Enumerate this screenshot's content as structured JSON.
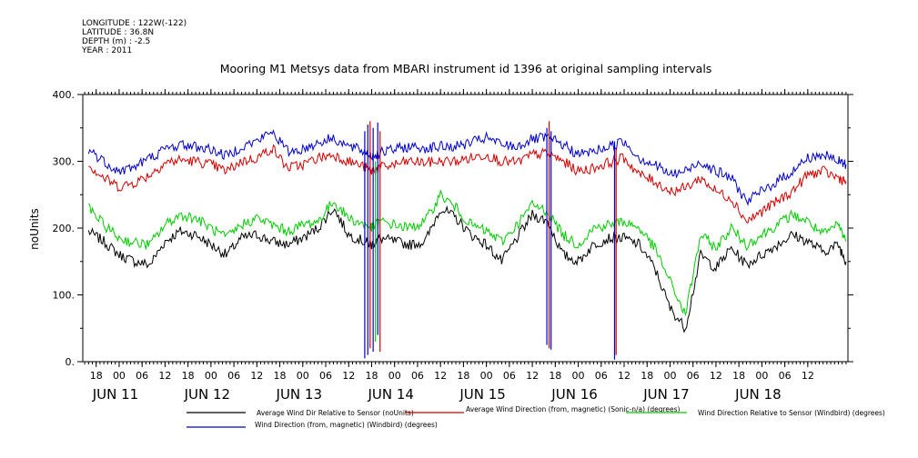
{
  "header": {
    "longitude": "LONGITUDE : 122W(-122)",
    "latitude": "LATITUDE : 36.8N",
    "depth": "DEPTH (m) : -2.5",
    "year": "YEAR : 2011"
  },
  "chart_data": {
    "type": "line",
    "title": "Mooring M1 Metsys data from MBARI instrument id 1396 at original sampling intervals",
    "ylabel": "noUnits",
    "ylim": [
      0,
      400
    ],
    "yticks": [
      {
        "value": 0,
        "label": "0."
      },
      {
        "value": 100,
        "label": "100."
      },
      {
        "value": 200,
        "label": "200."
      },
      {
        "value": 300,
        "label": "300."
      },
      {
        "value": 400,
        "label": "400."
      }
    ],
    "xlim_hours": [
      -9.5,
      190.5
    ],
    "x_hour_labels": [
      "18",
      "00",
      "06",
      "12",
      "18",
      "00",
      "06",
      "12",
      "18",
      "00",
      "06",
      "12",
      "18",
      "00",
      "06",
      "12",
      "18",
      "00",
      "06",
      "12",
      "18",
      "00",
      "06",
      "12",
      "18",
      "00",
      "06",
      "12",
      "18",
      "00",
      "06",
      "12"
    ],
    "x_day_labels": [
      "JUN 11",
      "JUN 12",
      "JUN 13",
      "JUN 14",
      "JUN 15",
      "JUN 16",
      "JUN 17",
      "JUN 18"
    ],
    "grid": false,
    "legend": "bottom",
    "series": [
      {
        "name": "Average Wind Dir Relative to Sensor (noUnits)",
        "color": "#000000",
        "x": [
          -8,
          -4,
          0,
          4,
          8,
          12,
          16,
          20,
          24,
          28,
          32,
          36,
          40,
          44,
          48,
          52,
          56,
          60,
          64,
          66,
          68,
          72,
          76,
          80,
          84,
          88,
          92,
          96,
          100,
          104,
          108,
          112,
          116,
          120,
          124,
          128,
          132,
          136,
          140,
          144,
          148,
          152,
          156,
          160,
          164,
          168,
          172,
          176,
          180,
          184,
          188,
          190
        ],
        "values": [
          195,
          180,
          160,
          150,
          145,
          180,
          195,
          190,
          175,
          160,
          185,
          190,
          180,
          175,
          185,
          200,
          230,
          190,
          180,
          175,
          185,
          180,
          175,
          180,
          230,
          215,
          190,
          175,
          150,
          185,
          220,
          210,
          160,
          150,
          175,
          185,
          185,
          175,
          140,
          80,
          50,
          160,
          140,
          170,
          145,
          160,
          175,
          190,
          180,
          165,
          175,
          150
        ]
      },
      {
        "name": "Average Wind Direction (from, magnetic) (Sonic-n/a) (degrees)",
        "color": "#d40000",
        "x": [
          -8,
          -4,
          0,
          4,
          8,
          12,
          16,
          20,
          24,
          28,
          32,
          36,
          40,
          44,
          48,
          52,
          56,
          60,
          64,
          66,
          68,
          72,
          76,
          80,
          84,
          88,
          92,
          96,
          100,
          104,
          108,
          112,
          116,
          120,
          124,
          128,
          132,
          136,
          140,
          144,
          148,
          152,
          156,
          160,
          164,
          168,
          172,
          176,
          180,
          184,
          188,
          190
        ],
        "values": [
          295,
          275,
          262,
          268,
          280,
          298,
          302,
          300,
          295,
          285,
          300,
          305,
          320,
          290,
          295,
          305,
          310,
          300,
          292,
          285,
          290,
          295,
          300,
          298,
          300,
          300,
          305,
          310,
          300,
          298,
          310,
          312,
          300,
          285,
          290,
          298,
          305,
          280,
          270,
          255,
          260,
          275,
          255,
          245,
          210,
          225,
          240,
          255,
          280,
          285,
          275,
          270
        ]
      },
      {
        "name": "Wind Direction Relative to Sensor (Windbird) (degrees)",
        "color": "#00cc00",
        "x": [
          -8,
          -4,
          0,
          4,
          8,
          12,
          16,
          20,
          24,
          28,
          32,
          36,
          40,
          44,
          48,
          52,
          56,
          60,
          64,
          66,
          68,
          72,
          76,
          80,
          84,
          88,
          92,
          96,
          100,
          104,
          108,
          112,
          116,
          120,
          124,
          128,
          132,
          136,
          140,
          144,
          148,
          152,
          156,
          160,
          164,
          168,
          172,
          176,
          180,
          184,
          188,
          190
        ],
        "values": [
          230,
          205,
          185,
          178,
          175,
          205,
          220,
          215,
          200,
          185,
          205,
          215,
          205,
          195,
          205,
          210,
          240,
          215,
          205,
          200,
          210,
          205,
          200,
          210,
          250,
          230,
          205,
          195,
          180,
          205,
          235,
          225,
          190,
          175,
          200,
          205,
          210,
          200,
          170,
          120,
          70,
          190,
          170,
          200,
          175,
          190,
          205,
          220,
          210,
          190,
          205,
          180
        ]
      },
      {
        "name": "Wind Direction (from, magnetic) (Windbird) (degrees)",
        "color": "#0000c8",
        "x": [
          -8,
          -4,
          0,
          4,
          8,
          12,
          16,
          20,
          24,
          28,
          32,
          36,
          40,
          44,
          48,
          52,
          56,
          60,
          64,
          66,
          68,
          72,
          76,
          80,
          84,
          88,
          92,
          96,
          100,
          104,
          108,
          112,
          116,
          120,
          124,
          128,
          132,
          136,
          140,
          144,
          148,
          152,
          156,
          160,
          164,
          168,
          172,
          176,
          180,
          184,
          188,
          190
        ],
        "values": [
          318,
          300,
          285,
          292,
          305,
          318,
          325,
          322,
          318,
          308,
          322,
          330,
          345,
          315,
          318,
          328,
          335,
          322,
          315,
          308,
          312,
          318,
          322,
          320,
          322,
          322,
          328,
          335,
          325,
          322,
          333,
          335,
          325,
          310,
          315,
          322,
          330,
          305,
          295,
          280,
          285,
          300,
          285,
          275,
          240,
          255,
          270,
          285,
          305,
          310,
          300,
          295
        ]
      }
    ],
    "spikes": [
      {
        "series": 3,
        "x": 64.2,
        "low": 5,
        "high": 345
      },
      {
        "series": 3,
        "x": 65.0,
        "low": 10,
        "high": 355
      },
      {
        "series": 1,
        "x": 65.6,
        "low": 20,
        "high": 360
      },
      {
        "series": 3,
        "x": 66.4,
        "low": 15,
        "high": 350
      },
      {
        "series": 2,
        "x": 67.0,
        "low": 30,
        "high": 300
      },
      {
        "series": 3,
        "x": 67.6,
        "low": 40,
        "high": 358
      },
      {
        "series": 1,
        "x": 68.2,
        "low": 15,
        "high": 345
      },
      {
        "series": 3,
        "x": 111.8,
        "low": 25,
        "high": 350
      },
      {
        "series": 1,
        "x": 112.4,
        "low": 20,
        "high": 360
      },
      {
        "series": 3,
        "x": 112.9,
        "low": 18,
        "high": 345
      },
      {
        "series": 3,
        "x": 129.5,
        "low": 3,
        "high": 330
      },
      {
        "series": 1,
        "x": 129.9,
        "low": 10,
        "high": 320
      }
    ]
  }
}
